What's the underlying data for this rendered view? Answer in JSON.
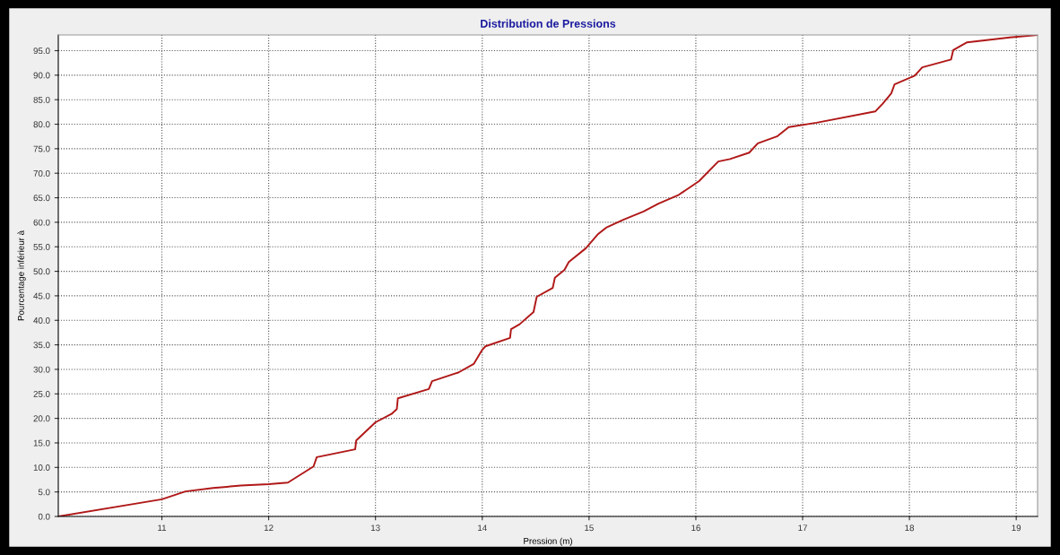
{
  "chart_data": {
    "type": "line",
    "title": "Distribution de Pressions",
    "xlabel": "Pression (m)",
    "ylabel": "Pourcentage inférieur à",
    "x": [
      10.03,
      11.0,
      11.22,
      11.48,
      11.74,
      12.0,
      12.18,
      12.42,
      12.45,
      12.81,
      12.82,
      13.0,
      13.15,
      13.2,
      13.21,
      13.5,
      13.53,
      13.78,
      13.92,
      14.0,
      14.03,
      14.26,
      14.27,
      14.35,
      14.48,
      14.51,
      14.66,
      14.68,
      14.77,
      14.81,
      14.97,
      15.08,
      15.16,
      15.32,
      15.51,
      15.65,
      15.84,
      16.03,
      16.21,
      16.32,
      16.5,
      16.58,
      16.76,
      16.87,
      17.13,
      17.68,
      17.75,
      17.83,
      17.86,
      18.05,
      18.12,
      18.39,
      18.41,
      18.54,
      18.94,
      19.2
    ],
    "series": [
      {
        "color": "#b01818",
        "values": [
          0,
          3.5,
          5.1,
          5.8,
          6.3,
          6.6,
          6.9,
          10.2,
          12.1,
          13.7,
          15.5,
          19.2,
          20.9,
          21.9,
          24.1,
          26.0,
          27.6,
          29.4,
          31.1,
          34.0,
          34.7,
          36.4,
          38.2,
          39.2,
          41.7,
          44.8,
          46.6,
          48.7,
          50.3,
          51.9,
          54.7,
          57.5,
          58.9,
          60.5,
          62.2,
          63.8,
          65.6,
          68.4,
          72.4,
          72.9,
          74.2,
          76.1,
          77.5,
          79.4,
          80.3,
          82.6,
          84.2,
          86.3,
          88.1,
          89.9,
          91.6,
          93.2,
          95.1,
          96.7,
          97.7,
          98.2
        ]
      }
    ],
    "xlim": [
      10.03,
      19.2
    ],
    "ylim": [
      0,
      98.2
    ],
    "xticks": [
      11,
      12,
      13,
      14,
      15,
      16,
      17,
      18,
      19
    ],
    "yticks": [
      {
        "value": 0,
        "label": "0.0"
      },
      {
        "value": 5,
        "label": "5.0"
      },
      {
        "value": 10,
        "label": "10.0"
      },
      {
        "value": 15,
        "label": "15.0"
      },
      {
        "value": 20,
        "label": "20.0"
      },
      {
        "value": 25,
        "label": "25.0"
      },
      {
        "value": 30,
        "label": "30.0"
      },
      {
        "value": 35,
        "label": "35.0"
      },
      {
        "value": 40,
        "label": "40.0"
      },
      {
        "value": 45,
        "label": "45.0"
      },
      {
        "value": 50,
        "label": "50.0"
      },
      {
        "value": 55,
        "label": "55.0"
      },
      {
        "value": 60,
        "label": "60.0"
      },
      {
        "value": 65,
        "label": "65.0"
      },
      {
        "value": 70,
        "label": "70.0"
      },
      {
        "value": 75,
        "label": "75.0"
      },
      {
        "value": 80,
        "label": "80.0"
      },
      {
        "value": 85,
        "label": "85.0"
      },
      {
        "value": 90,
        "label": "90.0"
      },
      {
        "value": 95,
        "label": "95.0"
      }
    ],
    "grid": true,
    "line_style": "solid"
  }
}
